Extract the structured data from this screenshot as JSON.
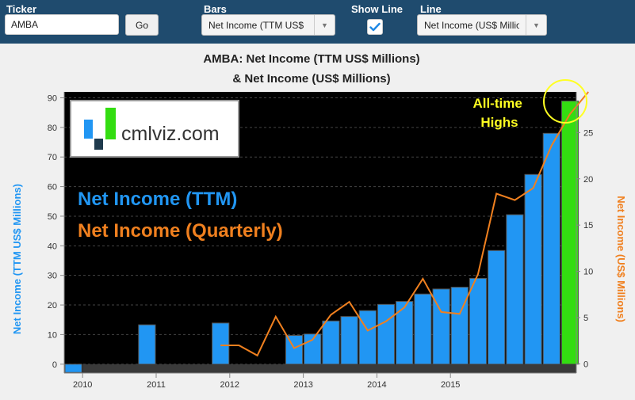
{
  "toolbar": {
    "ticker_label": "Ticker",
    "ticker_value": "AMBA",
    "go_label": "Go",
    "bars_label": "Bars",
    "bars_value": "Net Income (TTM US$",
    "showline_label": "Show Line",
    "showline_checked": true,
    "line_label": "Line",
    "line_value": "Net Income (US$ Millions)"
  },
  "chart_data": {
    "type": "bar",
    "title": "AMBA: Net Income (TTM US$ Millions)",
    "subtitle": "& Net Income (US$ Millions)",
    "ylabel": "Net Income (TTM US$ Millions)",
    "y2label": "Net Income (US$ Millions)",
    "ylim": [
      -3,
      92
    ],
    "y2lim": [
      -1,
      29.4
    ],
    "yticks": [
      0,
      10,
      20,
      30,
      40,
      50,
      60,
      70,
      80,
      90
    ],
    "y2ticks": [
      0,
      5,
      10,
      15,
      20,
      25
    ],
    "x_tick_labels": [
      "2010",
      "2011",
      "2012",
      "2013",
      "2014",
      "2015"
    ],
    "x_tick_positions": [
      1,
      5,
      9,
      13,
      17,
      21
    ],
    "bar_x": [
      0,
      4,
      8,
      12,
      13,
      14,
      15,
      16,
      17,
      18,
      19,
      20,
      21,
      22,
      23,
      24,
      25,
      26
    ],
    "bar_values": [
      -2.8,
      13.3,
      13.9,
      9.7,
      10.2,
      14.6,
      16.1,
      18.1,
      20.2,
      21.2,
      23.7,
      25.4,
      26.0,
      29.0,
      38.4,
      50.5,
      64.1,
      78.0
    ],
    "bar_highlight_value": 88.9,
    "bar_highlight_x": 27,
    "line_x": [
      8,
      9,
      10,
      11,
      12,
      13,
      14,
      15,
      16,
      17,
      18,
      19,
      20,
      21,
      22,
      23,
      24,
      25,
      26,
      27,
      28
    ],
    "line_values": [
      2.0,
      2.0,
      0.9,
      5.1,
      1.7,
      2.6,
      5.3,
      6.7,
      3.6,
      4.6,
      6.1,
      9.2,
      5.6,
      5.4,
      9.7,
      18.4,
      17.7,
      19.0,
      23.6,
      27.0,
      29.4
    ],
    "bar_color": "#2196f3",
    "highlight_color": "#33dd11",
    "line_color": "#f0801f",
    "background": "#000000",
    "legend_bars": "Net Income (TTM)",
    "legend_line": "Net Income (Quarterly)",
    "annotation": "All-time Highs"
  },
  "brand": {
    "text": "cmlviz.com"
  }
}
